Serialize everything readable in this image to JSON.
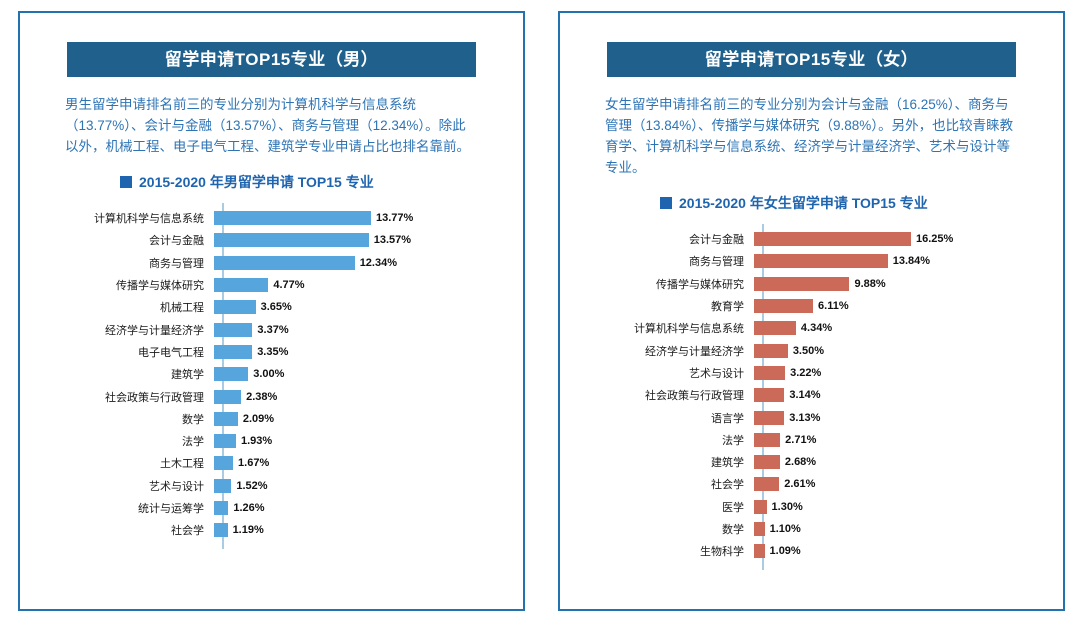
{
  "colors": {
    "panel_border": "#2272B0",
    "header_bg": "#1F618C",
    "header_text": "#FFFFFF",
    "body_text": "#2E74B5",
    "chart_title": "#1F64AE",
    "axis_line": "#A9CCE3",
    "male_bar": "#56A5DC",
    "female_bar": "#CC6A5A"
  },
  "panels": [
    {
      "header": "留学申请TOP15专业（男）",
      "description": "男生留学申请排名前三的专业分别为计算机科学与信息系统（13.77%）、会计与金融（13.57%）、商务与管理（12.34%）。除此以外，机械工程、电子电气工程、建筑学专业申请占比也排名靠前。",
      "chart_title": "2015-2020 年男留学申请 TOP15 专业"
    },
    {
      "header": "留学申请TOP15专业（女）",
      "description": "女生留学申请排名前三的专业分别为会计与金融（16.25%）、商务与管理（13.84%）、传播学与媒体研究（9.88%）。另外，也比较青睐教育学、计算机科学与信息系统、经济学与计量经济学、艺术与设计等专业。",
      "chart_title": "2015-2020 年女生留学申请 TOP15 专业"
    }
  ],
  "chart_data": [
    {
      "type": "bar",
      "orientation": "horizontal",
      "title": "2015-2020 年男留学申请 TOP15 专业",
      "unit": "%",
      "bar_color": "#56A5DC",
      "grid": false,
      "xlim": [
        0,
        14
      ],
      "categories": [
        "计算机科学与信息系统",
        "会计与金融",
        "商务与管理",
        "传播学与媒体研究",
        "机械工程",
        "经济学与计量经济学",
        "电子电气工程",
        "建筑学",
        "社会政策与行政管理",
        "数学",
        "法学",
        "土木工程",
        "艺术与设计",
        "统计与运筹学",
        "社会学"
      ],
      "values": [
        13.77,
        13.57,
        12.34,
        4.77,
        3.65,
        3.37,
        3.35,
        3.0,
        2.38,
        2.09,
        1.93,
        1.67,
        1.52,
        1.26,
        1.19
      ],
      "labels": [
        "13.77%",
        "13.57%",
        "12.34%",
        "4.77%",
        "3.65%",
        "3.37%",
        "3.35%",
        "3.00%",
        "2.38%",
        "2.09%",
        "1.93%",
        "1.67%",
        "1.52%",
        "1.26%",
        "1.19%"
      ]
    },
    {
      "type": "bar",
      "orientation": "horizontal",
      "title": "2015-2020 年女生留学申请 TOP15 专业",
      "unit": "%",
      "bar_color": "#CC6A5A",
      "grid": false,
      "xlim": [
        0,
        17
      ],
      "categories": [
        "会计与金融",
        "商务与管理",
        "传播学与媒体研究",
        "教育学",
        "计算机科学与信息系统",
        "经济学与计量经济学",
        "艺术与设计",
        "社会政策与行政管理",
        "语言学",
        "法学",
        "建筑学",
        "社会学",
        "医学",
        "数学",
        "生物科学"
      ],
      "values": [
        16.25,
        13.84,
        9.88,
        6.11,
        4.34,
        3.5,
        3.22,
        3.14,
        3.13,
        2.71,
        2.68,
        2.61,
        1.3,
        1.1,
        1.09
      ],
      "labels": [
        "16.25%",
        "13.84%",
        "9.88%",
        "6.11%",
        "4.34%",
        "3.50%",
        "3.22%",
        "3.14%",
        "3.13%",
        "2.71%",
        "2.68%",
        "2.61%",
        "1.30%",
        "1.10%",
        "1.09%"
      ]
    }
  ]
}
